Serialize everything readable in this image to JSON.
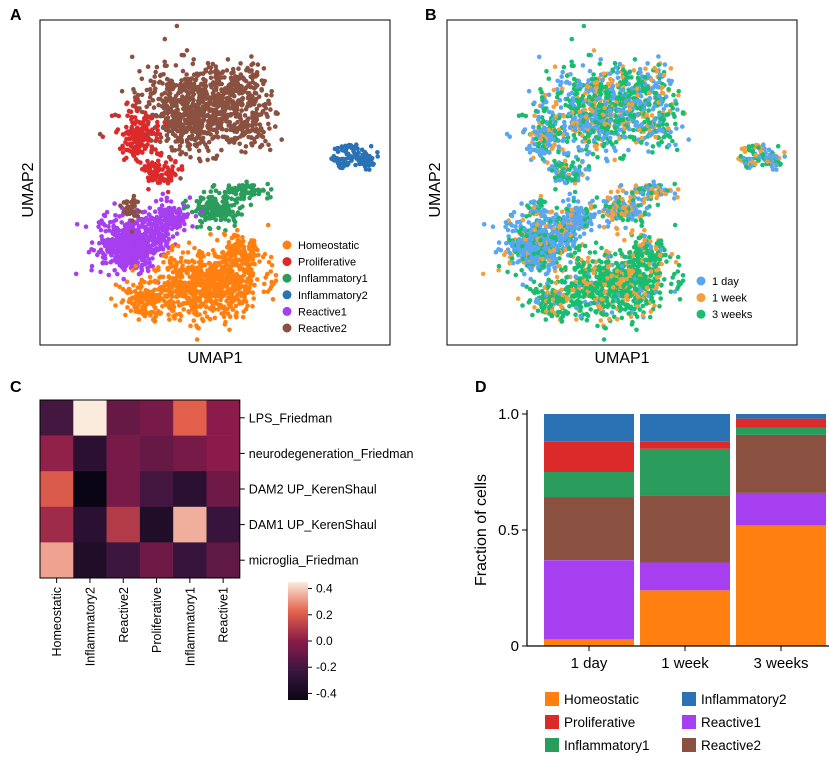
{
  "panels": {
    "A": "A",
    "B": "B",
    "C": "C",
    "D": "D"
  },
  "colors": {
    "Homeostatic": "#ff8010",
    "Proliferative": "#dc2a2a",
    "Inflammatory1": "#2a9d5c",
    "Inflammatory2": "#2a72b4",
    "Reactive1": "#a63ff0",
    "Reactive2": "#8a5040",
    "day1": "#5aa6f2",
    "week1": "#f2a03e",
    "weeks3": "#18bd6f"
  },
  "chart_data": [
    {
      "panel": "A",
      "type": "scatter",
      "xlabel": "UMAP1",
      "ylabel": "UMAP2",
      "legend_position": "bottom-right",
      "legend": [
        "Homeostatic",
        "Proliferative",
        "Inflammatory1",
        "Inflammatory2",
        "Reactive1",
        "Reactive2"
      ]
    },
    {
      "panel": "B",
      "type": "scatter",
      "xlabel": "UMAP1",
      "ylabel": "UMAP2",
      "legend_position": "bottom-right",
      "legend": [
        "1 day",
        "1 week",
        "3 weeks"
      ]
    },
    {
      "panel": "C",
      "type": "heatmap",
      "rows": [
        "LPS_Friedman",
        "neurodegeneration_Friedman",
        "DAM2 UP_KerenShaul",
        "DAM1 UP_KerenShaul",
        "microglia_Friedman"
      ],
      "columns": [
        "Homeostatic",
        "Inflammatory2",
        "Reactive2",
        "Proliferative",
        "Inflammatory1",
        "Reactive1"
      ],
      "values": [
        [
          -0.2,
          0.45,
          -0.1,
          -0.05,
          0.22,
          0.0
        ],
        [
          0.02,
          -0.3,
          -0.05,
          -0.1,
          -0.05,
          0.0
        ],
        [
          0.2,
          -0.45,
          -0.05,
          -0.2,
          -0.3,
          -0.08
        ],
        [
          0.05,
          -0.3,
          0.1,
          -0.35,
          0.35,
          -0.25
        ],
        [
          0.33,
          -0.35,
          -0.22,
          -0.08,
          -0.25,
          -0.12
        ]
      ],
      "colorbar_ticks": [
        0.4,
        0.2,
        0.0,
        -0.2,
        -0.4
      ],
      "colorbar_labels": [
        "0.4",
        "0.2",
        "0.0",
        "-0.2",
        "-0.4"
      ],
      "vmin": -0.45,
      "vmax": 0.45
    },
    {
      "panel": "D",
      "type": "bar",
      "stacked": true,
      "ylabel": "Fraction of cells",
      "categories": [
        "1 day",
        "1 week",
        "3 weeks"
      ],
      "ylim": [
        0,
        1.0
      ],
      "yticks": [
        0,
        0.5,
        1.0
      ],
      "ytick_labels": [
        "0",
        "0.5",
        "1.0"
      ],
      "series": [
        {
          "name": "Homeostatic",
          "values": [
            0.03,
            0.24,
            0.52
          ]
        },
        {
          "name": "Reactive1",
          "values": [
            0.34,
            0.12,
            0.14
          ]
        },
        {
          "name": "Reactive2",
          "values": [
            0.27,
            0.29,
            0.25
          ]
        },
        {
          "name": "Inflammatory1",
          "values": [
            0.11,
            0.2,
            0.03
          ]
        },
        {
          "name": "Proliferative",
          "values": [
            0.13,
            0.03,
            0.04
          ]
        },
        {
          "name": "Inflammatory2",
          "values": [
            0.12,
            0.12,
            0.02
          ]
        }
      ],
      "legend": [
        "Homeostatic",
        "Inflammatory2",
        "Proliferative",
        "Reactive1",
        "Inflammatory1",
        "Reactive2"
      ],
      "legend_position": "bottom"
    }
  ]
}
